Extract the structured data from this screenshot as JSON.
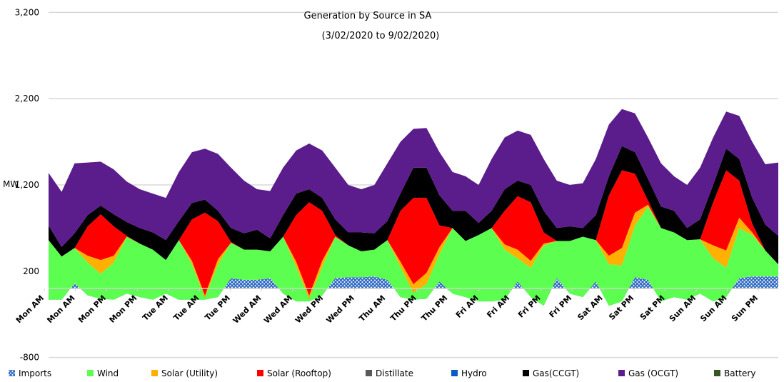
{
  "chart_data": {
    "type": "area",
    "stacked": true,
    "title": "Generation by Source in SA",
    "subtitle": "(3/02/2020 to 9/02/2020)",
    "ylabel": "MW",
    "xlabel": "",
    "ylim": [
      -800,
      3200
    ],
    "yticks": [
      "-800",
      "200",
      "1,200",
      "2,200",
      "3,200"
    ],
    "ytick_values": [
      -800,
      200,
      1200,
      2200,
      3200
    ],
    "x_interval_hours": 3,
    "x_tick_labels": [
      "Mon AM",
      "Mon AM",
      "Mon PM",
      "Mon PM",
      "Tue AM",
      "Tue AM",
      "Tue PM",
      "Wed AM",
      "Wed AM",
      "Wed PM",
      "Wed PM",
      "Thu AM",
      "Thu PM",
      "Thu PM",
      "Fri AM",
      "Fri AM",
      "Fri PM",
      "Fri PM",
      "Sat AM",
      "Sat PM",
      "Sat PM",
      "Sun AM",
      "Sun AM",
      "Sun PM"
    ],
    "grid": true,
    "legend_position": "bottom",
    "series": [
      {
        "name": "Imports",
        "color": "#1f5fbf",
        "pattern": "hatched",
        "values": [
          -130,
          -130,
          60,
          -80,
          -120,
          -130,
          -60,
          -100,
          -130,
          -60,
          -130,
          -130,
          -130,
          -100,
          120,
          100,
          100,
          120,
          -60,
          -150,
          -150,
          -80,
          120,
          130,
          130,
          140,
          100,
          -100,
          -130,
          -120,
          80,
          -60,
          -100,
          -150,
          -150,
          -130,
          80,
          -100,
          -200,
          120,
          -60,
          -100,
          80,
          -200,
          -150,
          130,
          100,
          -150,
          -100,
          -130,
          -60,
          -150,
          -100,
          120,
          140,
          140,
          140
        ]
      },
      {
        "name": "Wind",
        "color": "#5cff50",
        "values": [
          690,
          500,
          410,
          380,
          290,
          430,
          660,
          620,
          580,
          390,
          690,
          410,
          20,
          380,
          410,
          350,
          350,
          310,
          660,
          400,
          30,
          330,
          480,
          370,
          300,
          310,
          460,
          350,
          80,
          170,
          320,
          760,
          650,
          770,
          850,
          580,
          270,
          340,
          700,
          430,
          610,
          700,
          480,
          480,
          420,
          600,
          850,
          850,
          750,
          690,
          630,
          500,
          340,
          580,
          480,
          300,
          140
        ]
      },
      {
        "name": "Solar (Utility)",
        "color": "#ffb000",
        "values": [
          0,
          0,
          0,
          80,
          160,
          80,
          0,
          0,
          0,
          0,
          0,
          40,
          30,
          60,
          0,
          0,
          0,
          0,
          0,
          60,
          40,
          70,
          0,
          0,
          0,
          0,
          0,
          60,
          100,
          130,
          80,
          0,
          0,
          0,
          0,
          60,
          100,
          80,
          20,
          0,
          0,
          0,
          0,
          100,
          200,
          150,
          20,
          0,
          0,
          0,
          0,
          150,
          200,
          120,
          30,
          0,
          0
        ]
      },
      {
        "name": "Solar (Rooftop)",
        "color": "#ff0000",
        "values": [
          0,
          0,
          0,
          340,
          530,
          340,
          10,
          0,
          0,
          0,
          0,
          480,
          960,
          440,
          10,
          0,
          0,
          0,
          0,
          540,
          1080,
          580,
          20,
          0,
          0,
          0,
          0,
          590,
          1000,
          870,
          250,
          0,
          0,
          0,
          0,
          390,
          620,
          680,
          130,
          0,
          0,
          0,
          0,
          700,
          900,
          450,
          50,
          0,
          0,
          0,
          0,
          500,
          930,
          430,
          100,
          0,
          0
        ]
      },
      {
        "name": "Distillate",
        "color": "#595959",
        "values": []
      },
      {
        "name": "Hydro",
        "color": "#0a5cc0",
        "values": []
      },
      {
        "name": "Gas(CCGT)",
        "color": "#000000",
        "values": [
          170,
          110,
          170,
          130,
          100,
          140,
          160,
          180,
          200,
          230,
          220,
          190,
          150,
          120,
          160,
          190,
          230,
          150,
          250,
          250,
          150,
          150,
          180,
          150,
          220,
          190,
          220,
          200,
          350,
          350,
          350,
          200,
          350,
          140,
          200,
          250,
          180,
          200,
          250,
          150,
          170,
          100,
          290,
          220,
          280,
          250,
          250,
          250,
          250,
          140,
          230,
          200,
          250,
          250,
          300,
          300,
          330
        ]
      },
      {
        "name": "Gas (OCGT)",
        "color": "#5b1c8c",
        "values": [
          610,
          640,
          810,
          610,
          510,
          520,
          470,
          450,
          450,
          490,
          570,
          590,
          590,
          660,
          700,
          610,
          470,
          550,
          550,
          500,
          530,
          550,
          600,
          550,
          500,
          560,
          670,
          600,
          450,
          460,
          500,
          450,
          400,
          440,
          600,
          600,
          580,
          580,
          600,
          550,
          480,
          520,
          650,
          600,
          430,
          450,
          480,
          500,
          400,
          500,
          600,
          550,
          430,
          500,
          650,
          700,
          850
        ]
      },
      {
        "name": "Battery",
        "color": "#375623",
        "values": []
      }
    ]
  }
}
